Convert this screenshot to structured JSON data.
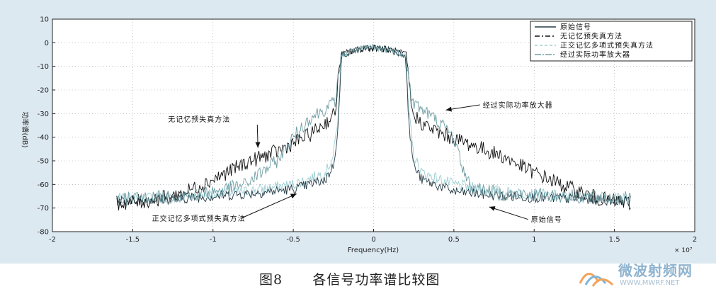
{
  "chart_data": {
    "type": "line",
    "title": "",
    "xlabel": "Frequency(Hz)",
    "ylabel": "功率谱(dB)",
    "x_exponent": "× 10⁷",
    "xlim": [
      -2,
      2
    ],
    "ylim": [
      -80,
      10
    ],
    "x_ticks": [
      -2,
      -1.5,
      -1,
      -0.5,
      0,
      0.5,
      1,
      1.5,
      2
    ],
    "y_ticks": [
      10,
      0,
      -10,
      -20,
      -30,
      -40,
      -50,
      -60,
      -70,
      -80
    ],
    "grid": true,
    "legend_position": "top-right",
    "series": [
      {
        "name": "原始信号",
        "color": "#243a45",
        "dash": "",
        "x": [
          -1.6,
          -1.2,
          -0.8,
          -0.5,
          -0.3,
          -0.25,
          -0.22,
          -0.2,
          -0.1,
          0,
          0.1,
          0.2,
          0.22,
          0.25,
          0.3,
          0.5,
          0.8,
          1.2,
          1.6
        ],
        "y": [
          -67,
          -66,
          -64,
          -62,
          -58,
          -52,
          -35,
          -5,
          -3,
          -2,
          -3,
          -5,
          -35,
          -52,
          -58,
          -63,
          -65,
          -66,
          -67
        ]
      },
      {
        "name": "无记忆预失真方法",
        "color": "#101010",
        "dash": "7,3,2,3",
        "x": [
          -1.6,
          -1.4,
          -1.2,
          -1.0,
          -0.8,
          -0.6,
          -0.4,
          -0.3,
          -0.24,
          -0.22,
          -0.2,
          -0.1,
          0,
          0.1,
          0.2,
          0.22,
          0.24,
          0.3,
          0.4,
          0.6,
          0.8,
          1.0,
          1.2,
          1.4,
          1.6
        ],
        "y": [
          -68,
          -67,
          -64,
          -58,
          -51,
          -46,
          -39,
          -34,
          -30,
          -15,
          -5,
          -3,
          -2,
          -3,
          -5,
          -15,
          -30,
          -34,
          -38,
          -43,
          -48,
          -55,
          -61,
          -66,
          -68
        ]
      },
      {
        "name": "正交记忆多项式预失真方法",
        "color": "#9ccdd2",
        "dash": "4,3",
        "x": [
          -1.6,
          -1.2,
          -0.8,
          -0.5,
          -0.3,
          -0.25,
          -0.22,
          -0.2,
          -0.1,
          0,
          0.1,
          0.2,
          0.22,
          0.25,
          0.3,
          0.5,
          0.8,
          1.2,
          1.6
        ],
        "y": [
          -66,
          -65,
          -63,
          -60,
          -55,
          -48,
          -30,
          -5,
          -3,
          -2,
          -3,
          -5,
          -30,
          -48,
          -55,
          -60,
          -63,
          -65,
          -66
        ]
      },
      {
        "name": "经过实际功率放大器",
        "color": "#6f9ea4",
        "dash": "9,2,2,2",
        "x": [
          -1.6,
          -1.2,
          -1.0,
          -0.8,
          -0.6,
          -0.5,
          -0.4,
          -0.3,
          -0.24,
          -0.2,
          -0.1,
          0,
          0.1,
          0.2,
          0.24,
          0.3,
          0.4,
          0.5,
          0.55,
          0.6,
          0.8,
          1.2,
          1.6
        ],
        "y": [
          -66,
          -65,
          -63,
          -60,
          -50,
          -40,
          -32,
          -28,
          -25,
          -5,
          -3,
          -2,
          -3,
          -5,
          -25,
          -28,
          -33,
          -40,
          -52,
          -61,
          -64,
          -65,
          -66
        ]
      }
    ],
    "annotations": [
      {
        "text": "无记忆预失真方法",
        "label_x": -1.28,
        "label_y": -33.5,
        "arrow_to": [
          -0.72,
          -44.5
        ]
      },
      {
        "text": "经过实际功率放大器",
        "label_x": 0.68,
        "label_y": -27.5,
        "arrow_to": [
          0.45,
          -28.5
        ]
      },
      {
        "text": "正交记忆多项式预失真方法",
        "label_x": -1.38,
        "label_y": -75.5,
        "arrow_to": [
          -0.48,
          -64
        ]
      },
      {
        "text": "原始信号",
        "label_x": 0.98,
        "label_y": -76,
        "arrow_to": [
          0.72,
          -69.5
        ]
      }
    ]
  },
  "caption": {
    "figure_label": "图8",
    "title": "各信号功率谱比较图"
  },
  "watermark": {
    "site_name": "微波射频网",
    "url": "WWW.MWRF.NET",
    "logo_colors": [
      "#f2a35b",
      "#7fb5d9"
    ]
  }
}
